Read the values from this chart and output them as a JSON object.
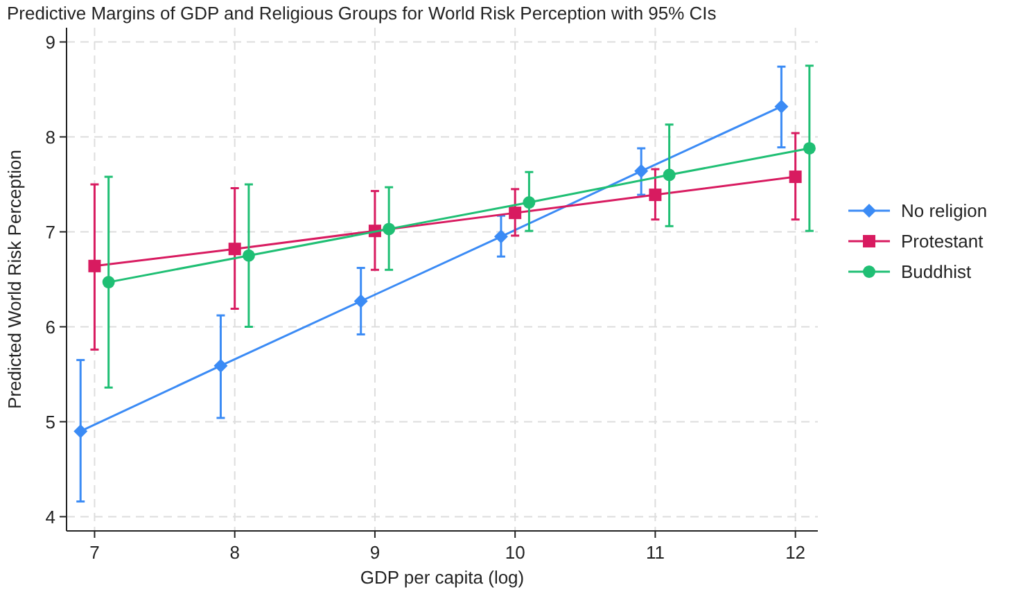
{
  "chart_data": {
    "type": "line",
    "title": "Predictive Margins of GDP and Religious Groups for World Risk Perception with 95% CIs",
    "xlabel": "GDP per capita (log)",
    "ylabel": "Predicted World Risk Perception",
    "xlim": [
      6.8,
      12.16
    ],
    "xticks": [
      7,
      8,
      9,
      10,
      11,
      12
    ],
    "ylim": [
      3.85,
      9.15
    ],
    "yticks": [
      4,
      5,
      6,
      7,
      8,
      9
    ],
    "grid": true,
    "legend": "right",
    "line_style": "solid",
    "series": [
      {
        "name": "No religion",
        "color": "#3b8bf5",
        "marker": "diamond",
        "x": [
          6.9,
          7.9,
          8.9,
          9.9,
          10.9,
          11.9
        ],
        "values": [
          4.9,
          5.59,
          6.27,
          6.95,
          7.64,
          8.32
        ],
        "errors": [
          [
            4.16,
            5.65
          ],
          [
            5.04,
            6.12
          ],
          [
            5.92,
            6.62
          ],
          [
            6.74,
            7.17
          ],
          [
            7.39,
            7.88
          ],
          [
            7.89,
            8.74
          ]
        ]
      },
      {
        "name": "Protestant",
        "color": "#d81b60",
        "marker": "square",
        "x": [
          7,
          8,
          9,
          10,
          11,
          12
        ],
        "values": [
          6.64,
          6.82,
          7.01,
          7.2,
          7.39,
          7.58
        ],
        "errors": [
          [
            5.76,
            7.5
          ],
          [
            6.19,
            7.46
          ],
          [
            6.6,
            7.43
          ],
          [
            6.96,
            7.45
          ],
          [
            7.13,
            7.66
          ],
          [
            7.13,
            8.04
          ]
        ]
      },
      {
        "name": "Buddhist",
        "color": "#1fbf74",
        "marker": "circle",
        "x": [
          7.1,
          8.1,
          9.1,
          10.1,
          11.1,
          12.1
        ],
        "values": [
          6.47,
          6.75,
          7.03,
          7.31,
          7.6,
          7.88
        ],
        "errors": [
          [
            5.36,
            7.58
          ],
          [
            6.0,
            7.5
          ],
          [
            6.6,
            7.47
          ],
          [
            7.01,
            7.63
          ],
          [
            7.06,
            8.13
          ],
          [
            7.01,
            8.75
          ]
        ]
      }
    ]
  }
}
